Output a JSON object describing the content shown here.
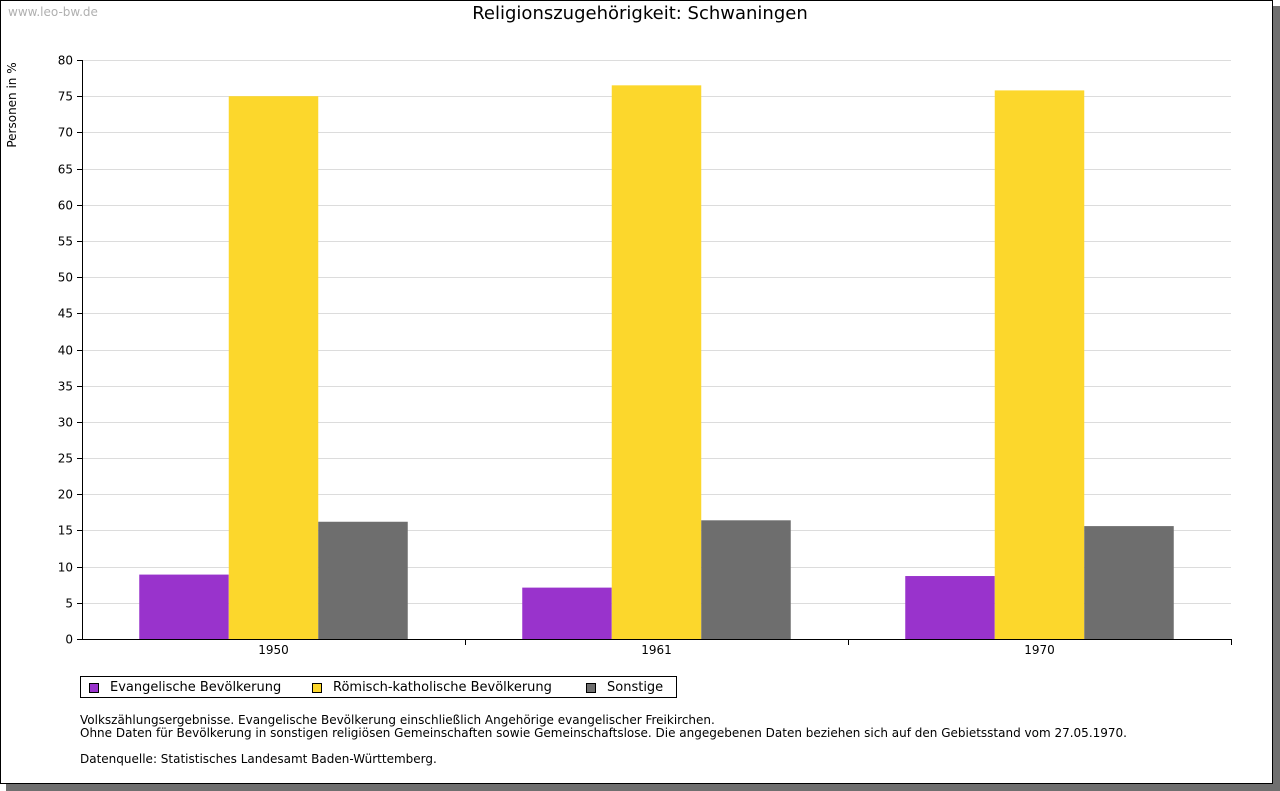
{
  "watermark": "www.leo-bw.de",
  "chart_data": {
    "type": "bar",
    "title": "Religionszugehörigkeit: Schwaningen",
    "xlabel": "",
    "ylabel": "Personen in %",
    "ylim": [
      0,
      80
    ],
    "yticks": [
      0,
      5,
      10,
      15,
      20,
      25,
      30,
      35,
      40,
      45,
      50,
      55,
      60,
      65,
      70,
      75,
      80
    ],
    "grid": true,
    "legend_position": "bottom-left",
    "categories": [
      "1950",
      "1961",
      "1970"
    ],
    "series": [
      {
        "name": "Evangelische Bevölkerung",
        "color": "#9933cc",
        "values": [
          8.9,
          7.1,
          8.7
        ]
      },
      {
        "name": "Römisch-katholische Bevölkerung",
        "color": "#fcd72c",
        "values": [
          75.0,
          76.5,
          75.8
        ]
      },
      {
        "name": "Sonstige",
        "color": "#6e6e6e",
        "values": [
          16.2,
          16.4,
          15.6
        ]
      }
    ]
  },
  "notes": {
    "line1": "Volkszählungsergebnisse. Evangelische Bevölkerung einschließlich Angehörige evangelischer Freikirchen.",
    "line2": "Ohne Daten für Bevölkerung in sonstigen religiösen Gemeinschaften sowie Gemeinschaftslose. Die angegebenen Daten beziehen sich auf den Gebietsstand vom 27.05.1970.",
    "source": "Datenquelle: Statistisches Landesamt Baden-Württemberg."
  }
}
